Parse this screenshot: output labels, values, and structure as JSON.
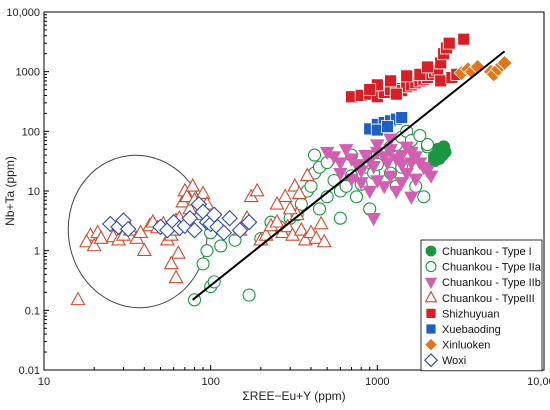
{
  "chart_data": {
    "type": "scatter",
    "title": "",
    "xlabel": "ΣREE−Eu+Y (ppm)",
    "ylabel": "Nb+Ta (ppm)",
    "x_scale": "log",
    "y_scale": "log",
    "xlim": [
      10,
      10000
    ],
    "ylim": [
      0.01,
      10000
    ],
    "x_ticks": [
      "10",
      "100",
      "1000",
      "10,000"
    ],
    "y_ticks": [
      "0.01",
      "0.1",
      "1",
      "10",
      "100",
      "1000",
      "10,000"
    ],
    "grid": false,
    "legend_position": "bottom-right",
    "trend_line": {
      "from": [
        78,
        0.15
      ],
      "to": [
        5800,
        2200
      ],
      "color": "#000000"
    },
    "field_ellipse": {
      "center": [
        38,
        2.6
      ],
      "spans_x": [
        14,
        95
      ],
      "spans_y": [
        0.11,
        40
      ]
    },
    "series": [
      {
        "name": "Chuankou - Type I",
        "marker": "circle",
        "filled": true,
        "color": "#1a9641",
        "points": [
          [
            2200,
            38
          ],
          [
            2300,
            42
          ],
          [
            2400,
            48
          ],
          [
            2500,
            55
          ],
          [
            2350,
            35
          ],
          [
            2450,
            40
          ],
          [
            2200,
            32
          ],
          [
            2550,
            45
          ],
          [
            2300,
            50
          ]
        ]
      },
      {
        "name": "Chuankou - Type IIa",
        "marker": "circle",
        "filled": false,
        "color": "#1a9641",
        "points": [
          [
            80,
            0.15
          ],
          [
            100,
            0.25
          ],
          [
            105,
            0.3
          ],
          [
            170,
            0.18
          ],
          [
            90,
            0.6
          ],
          [
            95,
            1.0
          ],
          [
            115,
            1.2
          ],
          [
            100,
            2.0
          ],
          [
            140,
            1.5
          ],
          [
            200,
            1.6
          ],
          [
            230,
            3.0
          ],
          [
            260,
            2.5
          ],
          [
            300,
            3.5
          ],
          [
            330,
            4.0
          ],
          [
            350,
            6.0
          ],
          [
            380,
            10
          ],
          [
            400,
            12
          ],
          [
            420,
            20
          ],
          [
            450,
            25
          ],
          [
            500,
            8
          ],
          [
            550,
            15
          ],
          [
            600,
            10
          ],
          [
            650,
            12
          ],
          [
            700,
            18
          ],
          [
            750,
            8
          ],
          [
            800,
            13
          ],
          [
            850,
            25
          ],
          [
            900,
            30
          ],
          [
            950,
            20
          ],
          [
            1000,
            40
          ],
          [
            1100,
            35
          ],
          [
            1200,
            55
          ],
          [
            1300,
            60
          ],
          [
            1400,
            80
          ],
          [
            1500,
            100
          ],
          [
            1600,
            70
          ],
          [
            1800,
            85
          ],
          [
            2000,
            55
          ],
          [
            420,
            40
          ],
          [
            700,
            40
          ],
          [
            1000,
            28
          ],
          [
            1200,
            20
          ],
          [
            1400,
            25
          ],
          [
            1700,
            12
          ],
          [
            1900,
            8
          ],
          [
            450,
            5
          ],
          [
            600,
            3.5
          ],
          [
            900,
            5
          ],
          [
            2000,
            60
          ],
          [
            500,
            30
          ],
          [
            1300,
            12
          ]
        ]
      },
      {
        "name": "Chuankou - Type IIb",
        "marker": "triangle-down",
        "filled": true,
        "color": "#d160b3",
        "points": [
          [
            500,
            45
          ],
          [
            550,
            38
          ],
          [
            600,
            30
          ],
          [
            650,
            50
          ],
          [
            700,
            35
          ],
          [
            750,
            28
          ],
          [
            800,
            22
          ],
          [
            850,
            40
          ],
          [
            900,
            32
          ],
          [
            950,
            26
          ],
          [
            1000,
            45
          ],
          [
            1100,
            38
          ],
          [
            1150,
            30
          ],
          [
            1200,
            50
          ],
          [
            1300,
            35
          ],
          [
            1400,
            28
          ],
          [
            1500,
            55
          ],
          [
            1600,
            45
          ],
          [
            1700,
            38
          ],
          [
            1800,
            30
          ],
          [
            1900,
            25
          ],
          [
            2000,
            22
          ],
          [
            1000,
            15
          ],
          [
            1100,
            12
          ],
          [
            1200,
            18
          ],
          [
            1300,
            10
          ],
          [
            1400,
            14
          ],
          [
            1600,
            8
          ],
          [
            900,
            10
          ],
          [
            800,
            14
          ],
          [
            700,
            16
          ],
          [
            1500,
            20
          ],
          [
            1700,
            16
          ],
          [
            2100,
            18
          ],
          [
            600,
            20
          ],
          [
            950,
            3.5
          ],
          [
            1200,
            75
          ],
          [
            1000,
            60
          ],
          [
            1400,
            40
          ],
          [
            1600,
            30
          ]
        ]
      },
      {
        "name": "Chuankou - TypeIII",
        "marker": "triangle-up",
        "filled": false,
        "color": "#d04a30",
        "points": [
          [
            16,
            0.15
          ],
          [
            19,
            1.8
          ],
          [
            18,
            1.4
          ],
          [
            20,
            1.2
          ],
          [
            21,
            2.0
          ],
          [
            22,
            1.6
          ],
          [
            26,
            1.7
          ],
          [
            28,
            1.5
          ],
          [
            30,
            1.8
          ],
          [
            33,
            2.2
          ],
          [
            36,
            1.6
          ],
          [
            38,
            2.0
          ],
          [
            40,
            1.0
          ],
          [
            43,
            2.6
          ],
          [
            45,
            3.0
          ],
          [
            48,
            2.4
          ],
          [
            52,
            2.8
          ],
          [
            55,
            1.5
          ],
          [
            58,
            1.8
          ],
          [
            60,
            2.2
          ],
          [
            62,
            3.2
          ],
          [
            64,
            0.9
          ],
          [
            65,
            3.5
          ],
          [
            68,
            6.5
          ],
          [
            70,
            10
          ],
          [
            72,
            8
          ],
          [
            75,
            5
          ],
          [
            78,
            12
          ],
          [
            80,
            7
          ],
          [
            85,
            4
          ],
          [
            90,
            9
          ],
          [
            95,
            6
          ],
          [
            62,
            0.35
          ],
          [
            58,
            0.6
          ],
          [
            150,
            2.2
          ],
          [
            165,
            3.5
          ],
          [
            175,
            8
          ],
          [
            190,
            10
          ],
          [
            200,
            1.5
          ],
          [
            215,
            1.8
          ],
          [
            230,
            2.6
          ],
          [
            250,
            3.0
          ],
          [
            270,
            2.0
          ],
          [
            290,
            2.5
          ],
          [
            310,
            1.8
          ],
          [
            330,
            4.0
          ],
          [
            350,
            2.2
          ],
          [
            370,
            1.5
          ],
          [
            400,
            2.0
          ],
          [
            430,
            1.6
          ],
          [
            460,
            2.8
          ],
          [
            480,
            1.4
          ],
          [
            300,
            5.0
          ],
          [
            320,
            12
          ],
          [
            280,
            8
          ],
          [
            340,
            9
          ],
          [
            380,
            18
          ],
          [
            250,
            6
          ]
        ]
      },
      {
        "name": "Shizhuyuan",
        "marker": "square",
        "filled": true,
        "color": "#d62027",
        "points": [
          [
            700,
            380
          ],
          [
            800,
            400
          ],
          [
            900,
            420
          ],
          [
            1000,
            380
          ],
          [
            1100,
            450
          ],
          [
            1200,
            500
          ],
          [
            1300,
            520
          ],
          [
            1400,
            480
          ],
          [
            1500,
            560
          ],
          [
            1600,
            600
          ],
          [
            1700,
            650
          ],
          [
            1800,
            700
          ],
          [
            1900,
            750
          ],
          [
            2000,
            800
          ],
          [
            2100,
            900
          ],
          [
            2200,
            1000
          ],
          [
            2300,
            1100
          ],
          [
            2400,
            1400
          ],
          [
            2500,
            2000
          ],
          [
            2600,
            2500
          ],
          [
            2700,
            3000
          ],
          [
            3300,
            3500
          ],
          [
            1000,
            600
          ],
          [
            1200,
            700
          ],
          [
            1500,
            850
          ],
          [
            1800,
            900
          ],
          [
            2000,
            1200
          ],
          [
            1300,
            420
          ],
          [
            900,
            500
          ],
          [
            2400,
            700
          ],
          [
            2800,
            800
          ],
          [
            3000,
            900
          ]
        ]
      },
      {
        "name": "Xuebaoding",
        "marker": "square",
        "filled": true,
        "color": "#1f5fbf",
        "points": [
          [
            900,
            110
          ],
          [
            1000,
            130
          ],
          [
            1100,
            140
          ],
          [
            1200,
            150
          ],
          [
            1300,
            160
          ],
          [
            1400,
            170
          ],
          [
            1000,
            105
          ],
          [
            1150,
            120
          ]
        ]
      },
      {
        "name": "Xinluoken",
        "marker": "diamond",
        "filled": true,
        "color": "#e0771a",
        "points": [
          [
            3200,
            950
          ],
          [
            3500,
            1100
          ],
          [
            3700,
            1000
          ],
          [
            4000,
            1200
          ],
          [
            4800,
            1000
          ],
          [
            5000,
            900
          ],
          [
            5300,
            1100
          ],
          [
            5600,
            1300
          ],
          [
            5800,
            1400
          ]
        ]
      },
      {
        "name": "Woxi",
        "marker": "diamond",
        "filled": false,
        "color": "#2a4aa8",
        "points": [
          [
            25,
            2.8
          ],
          [
            28,
            2.5
          ],
          [
            30,
            3.2
          ],
          [
            32,
            2.3
          ],
          [
            50,
            2.5
          ],
          [
            55,
            2.2
          ],
          [
            60,
            3.0
          ],
          [
            65,
            2.4
          ],
          [
            70,
            2.6
          ],
          [
            75,
            3.5
          ],
          [
            80,
            2.2
          ],
          [
            85,
            6.0
          ],
          [
            90,
            4.5
          ],
          [
            95,
            3.0
          ],
          [
            100,
            2.8
          ],
          [
            105,
            4.0
          ],
          [
            110,
            2.5
          ],
          [
            120,
            2.0
          ],
          [
            130,
            3.5
          ],
          [
            150,
            2.2
          ],
          [
            170,
            3.0
          ]
        ]
      }
    ]
  }
}
